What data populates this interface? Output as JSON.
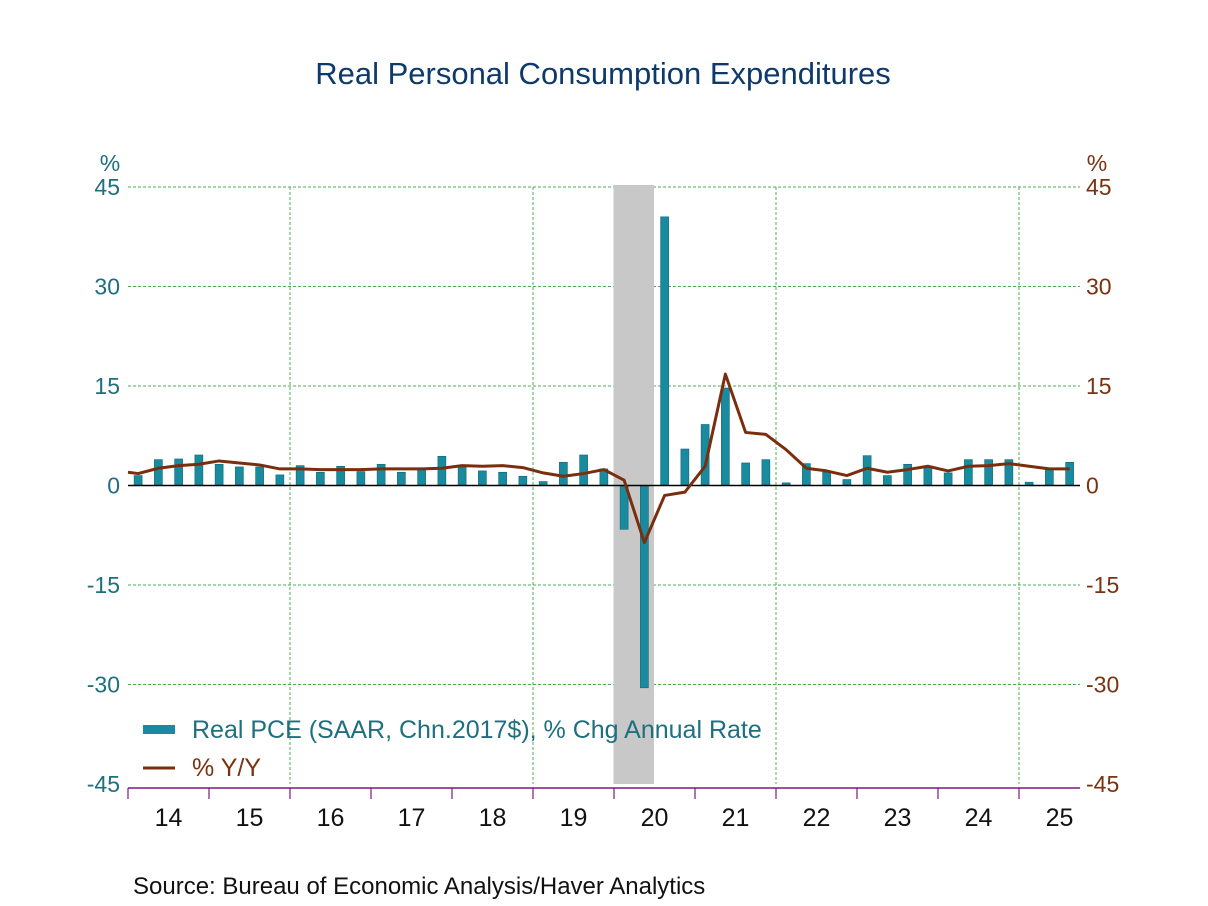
{
  "chart_data": {
    "type": "bar+line",
    "title": "Real Personal Consumption Expenditures",
    "source": "Source:  Bureau of Economic Analysis/Haver Analytics",
    "left_axis": {
      "unit_label": "%",
      "ylim": [
        -45,
        45
      ],
      "ticks": [
        45,
        30,
        15,
        0,
        -15,
        -30,
        -45
      ]
    },
    "right_axis": {
      "unit_label": "%",
      "ylim": [
        -45,
        45
      ],
      "ticks": [
        45,
        30,
        15,
        0,
        -15,
        -30,
        -45
      ]
    },
    "x_tick_labels": [
      "14",
      "15",
      "16",
      "17",
      "18",
      "19",
      "20",
      "21",
      "22",
      "23",
      "24",
      "25"
    ],
    "x_gridlines_at_years": [
      "16",
      "19",
      "22",
      "25"
    ],
    "grid": true,
    "legend_placement": "bottom-left",
    "recession": {
      "start": "2020Q1",
      "end": "2020Q2"
    },
    "quarters": [
      "2014Q1",
      "2014Q2",
      "2014Q3",
      "2014Q4",
      "2015Q1",
      "2015Q2",
      "2015Q3",
      "2015Q4",
      "2016Q1",
      "2016Q2",
      "2016Q3",
      "2016Q4",
      "2017Q1",
      "2017Q2",
      "2017Q3",
      "2017Q4",
      "2018Q1",
      "2018Q2",
      "2018Q3",
      "2018Q4",
      "2019Q1",
      "2019Q2",
      "2019Q3",
      "2019Q4",
      "2020Q1",
      "2020Q2",
      "2020Q3",
      "2020Q4",
      "2021Q1",
      "2021Q2",
      "2021Q3",
      "2021Q4",
      "2022Q1",
      "2022Q2",
      "2022Q3",
      "2022Q4",
      "2023Q1",
      "2023Q2",
      "2023Q3",
      "2023Q4",
      "2024Q1",
      "2024Q2",
      "2024Q3",
      "2024Q4",
      "2025Q1",
      "2025Q2",
      "2025Q3"
    ],
    "series": [
      {
        "name": "Real PCE (SAAR, Chn.2017$), % Chg Annual Rate",
        "type": "bar",
        "axis": "left",
        "color": "#1a8a9e",
        "values": [
          1.5,
          3.9,
          4.0,
          4.6,
          3.2,
          2.8,
          2.8,
          1.6,
          3.0,
          2.0,
          2.9,
          2.1,
          3.2,
          2.0,
          2.4,
          4.4,
          2.8,
          2.2,
          2.0,
          1.4,
          0.6,
          3.5,
          4.6,
          2.5,
          -6.6,
          -30.5,
          40.5,
          5.5,
          9.2,
          14.7,
          3.4,
          3.9,
          0.4,
          3.3,
          2.0,
          0.9,
          4.5,
          1.5,
          3.2,
          2.9,
          1.9,
          3.9,
          3.9,
          3.9,
          0.5,
          2.6,
          3.5
        ]
      },
      {
        "name": "% Y/Y",
        "type": "line",
        "axis": "right",
        "color": "#7a2e0e",
        "values": [
          1.8,
          2.6,
          3.0,
          3.2,
          3.7,
          3.4,
          3.1,
          2.5,
          2.5,
          2.4,
          2.4,
          2.4,
          2.5,
          2.5,
          2.5,
          2.6,
          3.0,
          2.9,
          3.0,
          2.7,
          1.9,
          1.4,
          1.8,
          2.4,
          0.8,
          -8.6,
          -1.5,
          -1.0,
          2.9,
          16.8,
          8.0,
          7.7,
          5.4,
          2.6,
          2.2,
          1.5,
          2.6,
          2.0,
          2.4,
          2.9,
          2.2,
          2.9,
          3.0,
          3.3,
          2.9,
          2.5,
          2.5
        ]
      }
    ]
  },
  "colors": {
    "title": "#0d3a6b",
    "left_axis_text": "#1e6f7f",
    "right_axis_text": "#7a3210",
    "gridline": "#4caf50",
    "x_axis": "#7a1a7a",
    "recession_shade": "#c8c8c8",
    "zero_line": "#000000"
  }
}
